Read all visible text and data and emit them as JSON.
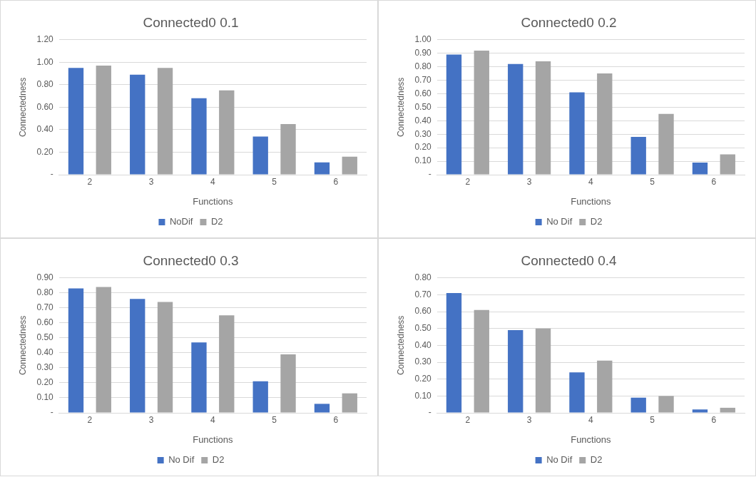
{
  "chart_data": [
    {
      "type": "bar",
      "title": "Connected0 0.1",
      "xlabel": "Functions",
      "ylabel": "Connectedness",
      "categories": [
        "2",
        "3",
        "4",
        "5",
        "6"
      ],
      "series": [
        {
          "name": "NoDif",
          "color": "#4472c4",
          "values": [
            0.95,
            0.89,
            0.68,
            0.34,
            0.11
          ]
        },
        {
          "name": "D2",
          "color": "#a5a5a5",
          "values": [
            0.97,
            0.95,
            0.75,
            0.45,
            0.16
          ]
        }
      ],
      "ylim": [
        0,
        1.2
      ],
      "yticks": [
        {
          "value": 0,
          "label": "-"
        },
        {
          "value": 0.2,
          "label": "0.20"
        },
        {
          "value": 0.4,
          "label": "0.40"
        },
        {
          "value": 0.6,
          "label": "0.60"
        },
        {
          "value": 0.8,
          "label": "0.80"
        },
        {
          "value": 1,
          "label": "1.00"
        },
        {
          "value": 1.2,
          "label": "1.20"
        }
      ],
      "grid": "y",
      "legend": "bottom"
    },
    {
      "type": "bar",
      "title": "Connected0 0.2",
      "xlabel": "Functions",
      "ylabel": "Connectedness",
      "categories": [
        "2",
        "3",
        "4",
        "5",
        "6"
      ],
      "series": [
        {
          "name": "No Dif",
          "color": "#4472c4",
          "values": [
            0.89,
            0.82,
            0.61,
            0.28,
            0.09
          ]
        },
        {
          "name": "D2",
          "color": "#a5a5a5",
          "values": [
            0.92,
            0.84,
            0.75,
            0.45,
            0.15
          ]
        }
      ],
      "ylim": [
        0,
        1
      ],
      "yticks": [
        {
          "value": 0,
          "label": "-"
        },
        {
          "value": 0.1,
          "label": "0.10"
        },
        {
          "value": 0.2,
          "label": "0.20"
        },
        {
          "value": 0.3,
          "label": "0.30"
        },
        {
          "value": 0.4,
          "label": "0.40"
        },
        {
          "value": 0.5,
          "label": "0.50"
        },
        {
          "value": 0.6,
          "label": "0.60"
        },
        {
          "value": 0.7,
          "label": "0.70"
        },
        {
          "value": 0.8,
          "label": "0.80"
        },
        {
          "value": 0.9,
          "label": "0.90"
        },
        {
          "value": 1,
          "label": "1.00"
        }
      ],
      "grid": "y",
      "legend": "bottom"
    },
    {
      "type": "bar",
      "title": "Connected0 0.3",
      "xlabel": "Functions",
      "ylabel": "Connectedness",
      "categories": [
        "2",
        "3",
        "4",
        "5",
        "6"
      ],
      "series": [
        {
          "name": "No Dif",
          "color": "#4472c4",
          "values": [
            0.83,
            0.76,
            0.47,
            0.21,
            0.06
          ]
        },
        {
          "name": "D2",
          "color": "#a5a5a5",
          "values": [
            0.84,
            0.74,
            0.65,
            0.39,
            0.13
          ]
        }
      ],
      "ylim": [
        0,
        0.9
      ],
      "yticks": [
        {
          "value": 0,
          "label": "-"
        },
        {
          "value": 0.1,
          "label": "0.10"
        },
        {
          "value": 0.2,
          "label": "0.20"
        },
        {
          "value": 0.3,
          "label": "0.30"
        },
        {
          "value": 0.4,
          "label": "0.40"
        },
        {
          "value": 0.5,
          "label": "0.50"
        },
        {
          "value": 0.6,
          "label": "0.60"
        },
        {
          "value": 0.7,
          "label": "0.70"
        },
        {
          "value": 0.8,
          "label": "0.80"
        },
        {
          "value": 0.9,
          "label": "0.90"
        }
      ],
      "grid": "y",
      "legend": "bottom"
    },
    {
      "type": "bar",
      "title": "Connected0 0.4",
      "xlabel": "Functions",
      "ylabel": "Connectedness",
      "categories": [
        "2",
        "3",
        "4",
        "5",
        "6"
      ],
      "series": [
        {
          "name": "No Dif",
          "color": "#4472c4",
          "values": [
            0.71,
            0.49,
            0.24,
            0.09,
            0.02
          ]
        },
        {
          "name": "D2",
          "color": "#a5a5a5",
          "values": [
            0.61,
            0.5,
            0.31,
            0.1,
            0.03
          ]
        }
      ],
      "ylim": [
        0,
        0.8
      ],
      "yticks": [
        {
          "value": 0,
          "label": "-"
        },
        {
          "value": 0.1,
          "label": "0.10"
        },
        {
          "value": 0.2,
          "label": "0.20"
        },
        {
          "value": 0.3,
          "label": "0.30"
        },
        {
          "value": 0.4,
          "label": "0.40"
        },
        {
          "value": 0.5,
          "label": "0.50"
        },
        {
          "value": 0.6,
          "label": "0.60"
        },
        {
          "value": 0.7,
          "label": "0.70"
        },
        {
          "value": 0.8,
          "label": "0.80"
        }
      ],
      "grid": "y",
      "legend": "bottom"
    }
  ]
}
